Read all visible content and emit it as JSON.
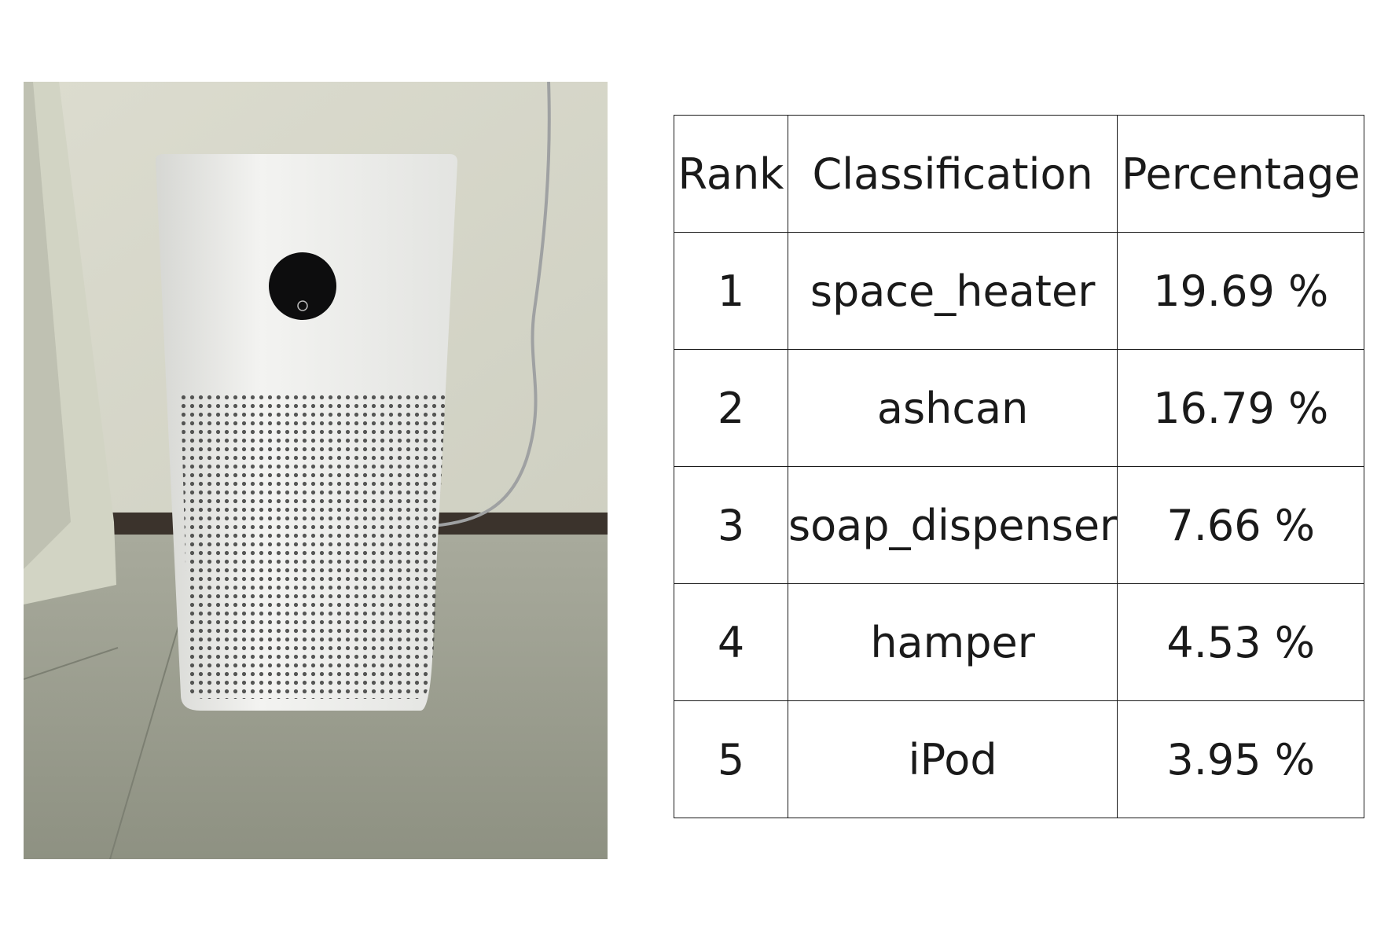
{
  "table": {
    "headers": {
      "rank": "Rank",
      "classification": "Classification",
      "percentage": "Percentage"
    },
    "rows": [
      {
        "rank": "1",
        "classification": "space_heater",
        "percentage": "19.69 %"
      },
      {
        "rank": "2",
        "classification": "ashcan",
        "percentage": "16.79 %"
      },
      {
        "rank": "3",
        "classification": "soap_dispenser",
        "percentage": "7.66 %"
      },
      {
        "rank": "4",
        "classification": "hamper",
        "percentage": "4.53 %"
      },
      {
        "rank": "5",
        "classification": "iPod",
        "percentage": "3.95 %"
      }
    ]
  }
}
